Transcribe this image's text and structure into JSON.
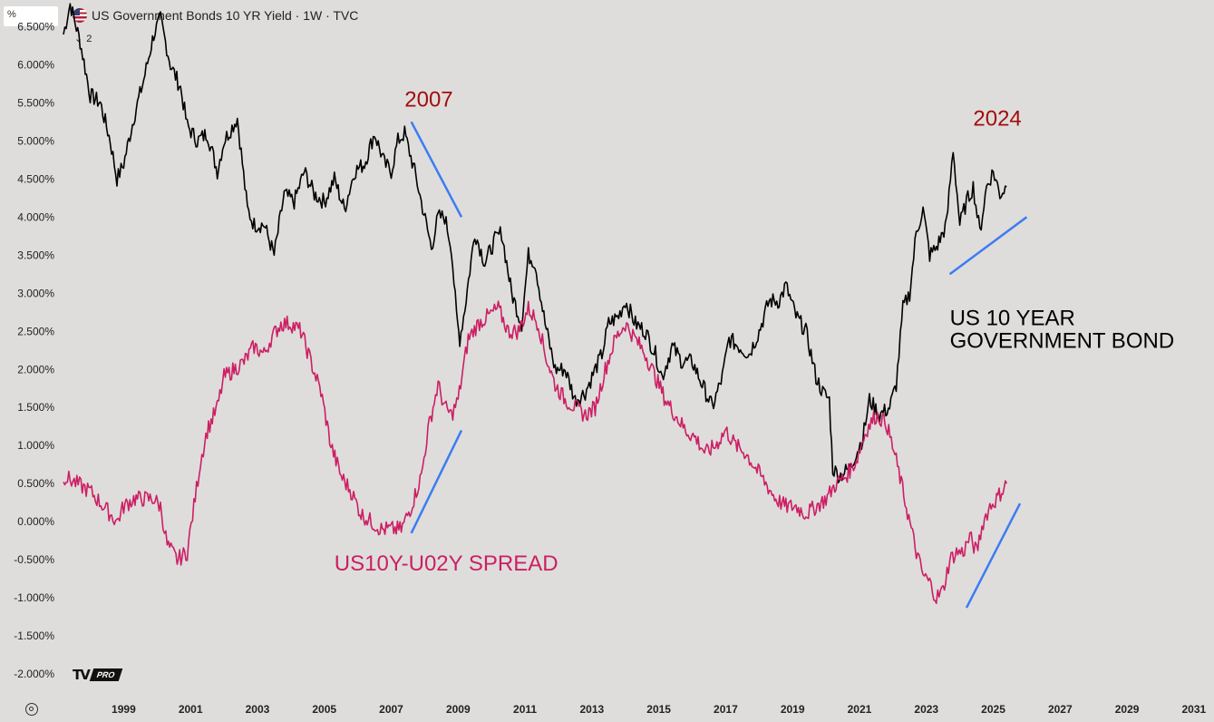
{
  "header": {
    "price_scale_unit": "%",
    "symbol_title": "US Government Bonds 10 YR Yield · 1W · TVC",
    "collapse_count": "2",
    "flag_icon": "us-flag-icon"
  },
  "branding": {
    "logo_text": "TV",
    "pro_badge": "PRO"
  },
  "colors": {
    "background": "#dedddc",
    "us10y": "#000000",
    "spread": "#cc1f64",
    "trendline": "#3d7cf2",
    "year_label": "#a30d0d"
  },
  "chart_data": {
    "type": "line",
    "title": "US Government Bonds 10 YR Yield · 1W · TVC",
    "x_ticks": [
      "1999",
      "2001",
      "2003",
      "2005",
      "2007",
      "2009",
      "2011",
      "2013",
      "2015",
      "2017",
      "2019",
      "2021",
      "2023",
      "2025",
      "2027",
      "2029",
      "2031"
    ],
    "y_ticks": [
      "6.500%",
      "6.000%",
      "5.500%",
      "5.000%",
      "4.500%",
      "4.000%",
      "3.500%",
      "3.000%",
      "2.500%",
      "2.000%",
      "1.500%",
      "1.000%",
      "0.500%",
      "0.000%",
      "-0.500%",
      "-1.000%",
      "-1.500%",
      "-2.000%"
    ],
    "xlim": [
      1997.2,
      2031.6
    ],
    "ylim": [
      -2.32,
      6.85
    ],
    "grid": false,
    "series": [
      {
        "name": "US 10 YEAR GOVERNMENT BOND",
        "color": "#000000",
        "x": [
          1997.2,
          1997.4,
          1997.7,
          1998.0,
          1998.3,
          1998.6,
          1998.8,
          1999.0,
          1999.3,
          1999.6,
          1999.9,
          2000.1,
          2000.4,
          2000.7,
          2000.9,
          2001.2,
          2001.5,
          2001.8,
          2002.0,
          2002.4,
          2002.7,
          2002.9,
          2003.2,
          2003.5,
          2003.8,
          2004.1,
          2004.4,
          2004.7,
          2005.0,
          2005.3,
          2005.6,
          2005.9,
          2006.2,
          2006.5,
          2006.8,
          2007.0,
          2007.2,
          2007.4,
          2007.7,
          2007.9,
          2008.2,
          2008.4,
          2008.6,
          2008.8,
          2008.95,
          2009.05,
          2009.2,
          2009.5,
          2009.8,
          2010.1,
          2010.3,
          2010.6,
          2010.9,
          2011.1,
          2011.3,
          2011.6,
          2011.9,
          2012.2,
          2012.5,
          2012.8,
          2013.0,
          2013.3,
          2013.5,
          2013.8,
          2014.0,
          2014.3,
          2014.6,
          2014.9,
          2015.1,
          2015.4,
          2015.7,
          2016.0,
          2016.3,
          2016.6,
          2016.9,
          2017.1,
          2017.4,
          2017.7,
          2018.0,
          2018.3,
          2018.6,
          2018.8,
          2019.1,
          2019.4,
          2019.7,
          2019.9,
          2020.1,
          2020.2,
          2020.4,
          2020.7,
          2020.9,
          2021.1,
          2021.3,
          2021.6,
          2021.9,
          2022.1,
          2022.3,
          2022.5,
          2022.7,
          2022.9,
          2023.1,
          2023.3,
          2023.6,
          2023.8,
          2024.0,
          2024.2,
          2024.4,
          2024.6,
          2024.8,
          2025.0,
          2025.2,
          2025.4
        ],
        "y": [
          6.4,
          6.8,
          6.3,
          5.6,
          5.5,
          5.0,
          4.5,
          4.7,
          5.3,
          5.8,
          6.4,
          6.6,
          6.0,
          5.7,
          5.2,
          5.0,
          5.1,
          4.6,
          5.0,
          5.3,
          4.1,
          3.9,
          3.9,
          3.5,
          4.3,
          4.2,
          4.6,
          4.3,
          4.2,
          4.5,
          4.1,
          4.6,
          4.7,
          5.1,
          4.7,
          4.6,
          5.0,
          5.1,
          4.6,
          4.2,
          3.6,
          4.0,
          4.0,
          3.6,
          2.7,
          2.4,
          2.8,
          3.8,
          3.4,
          3.7,
          3.8,
          3.0,
          2.6,
          3.5,
          3.4,
          2.6,
          2.0,
          2.0,
          1.6,
          1.7,
          1.9,
          2.2,
          2.6,
          2.7,
          2.9,
          2.6,
          2.5,
          2.2,
          1.9,
          2.3,
          2.1,
          2.1,
          1.8,
          1.5,
          1.9,
          2.4,
          2.3,
          2.2,
          2.5,
          2.9,
          2.9,
          3.1,
          2.7,
          2.5,
          1.9,
          1.7,
          1.6,
          0.7,
          0.6,
          0.7,
          0.9,
          1.1,
          1.6,
          1.4,
          1.5,
          1.8,
          2.8,
          3.0,
          3.8,
          4.1,
          3.5,
          3.6,
          3.9,
          4.9,
          3.9,
          4.2,
          4.4,
          3.8,
          4.4,
          4.6,
          4.3,
          4.4
        ]
      },
      {
        "name": "US10Y-U02Y SPREAD",
        "color": "#cc1f64",
        "x": [
          1997.2,
          1997.6,
          1998.0,
          1998.4,
          1998.8,
          1999.0,
          1999.3,
          1999.6,
          1999.9,
          2000.1,
          2000.3,
          2000.6,
          2000.9,
          2001.1,
          2001.3,
          2001.5,
          2001.8,
          2002.0,
          2002.3,
          2002.6,
          2002.9,
          2003.2,
          2003.4,
          2003.7,
          2004.0,
          2004.3,
          2004.6,
          2004.9,
          2005.2,
          2005.5,
          2005.8,
          2006.1,
          2006.4,
          2006.7,
          2007.0,
          2007.3,
          2007.6,
          2007.9,
          2008.1,
          2008.4,
          2008.6,
          2008.8,
          2009.0,
          2009.3,
          2009.6,
          2009.9,
          2010.2,
          2010.5,
          2010.8,
          2011.1,
          2011.4,
          2011.6,
          2011.9,
          2012.2,
          2012.5,
          2012.8,
          2013.1,
          2013.4,
          2013.7,
          2014.0,
          2014.3,
          2014.6,
          2014.9,
          2015.2,
          2015.5,
          2015.8,
          2016.1,
          2016.4,
          2016.7,
          2017.0,
          2017.3,
          2017.6,
          2017.9,
          2018.2,
          2018.5,
          2018.8,
          2019.1,
          2019.4,
          2019.7,
          2020.0,
          2020.3,
          2020.6,
          2020.9,
          2021.2,
          2021.5,
          2021.8,
          2022.1,
          2022.4,
          2022.7,
          2022.9,
          2023.1,
          2023.3,
          2023.5,
          2023.7,
          2023.9,
          2024.1,
          2024.3,
          2024.5,
          2024.7,
          2024.9,
          2025.1,
          2025.4
        ],
        "y": [
          0.6,
          0.5,
          0.4,
          0.2,
          0.0,
          0.2,
          0.3,
          0.3,
          0.3,
          0.2,
          -0.3,
          -0.5,
          -0.4,
          0.2,
          0.8,
          1.2,
          1.5,
          1.9,
          2.0,
          2.1,
          2.3,
          2.2,
          2.4,
          2.6,
          2.6,
          2.5,
          2.1,
          1.7,
          1.0,
          0.6,
          0.4,
          0.1,
          0.0,
          -0.1,
          -0.1,
          -0.1,
          0.2,
          0.6,
          1.2,
          1.8,
          1.5,
          1.4,
          1.6,
          2.4,
          2.6,
          2.7,
          2.8,
          2.5,
          2.5,
          2.8,
          2.6,
          2.2,
          1.8,
          1.6,
          1.5,
          1.4,
          1.5,
          2.0,
          2.4,
          2.6,
          2.4,
          2.2,
          1.9,
          1.6,
          1.4,
          1.2,
          1.1,
          0.9,
          1.0,
          1.2,
          1.0,
          0.9,
          0.7,
          0.5,
          0.3,
          0.2,
          0.2,
          0.1,
          0.2,
          0.3,
          0.5,
          0.6,
          0.8,
          1.2,
          1.4,
          1.3,
          0.8,
          0.2,
          -0.4,
          -0.7,
          -0.8,
          -1.0,
          -0.9,
          -0.5,
          -0.4,
          -0.4,
          -0.2,
          -0.4,
          0.0,
          0.2,
          0.3,
          0.5
        ]
      }
    ],
    "annotations": [
      {
        "text": "2007",
        "x": 2007.4,
        "y": 5.45,
        "color": "#a30d0d"
      },
      {
        "text": "2024",
        "x": 2024.4,
        "y": 5.2,
        "color": "#a30d0d"
      },
      {
        "text": "US 10 YEAR",
        "x": 2023.7,
        "y": 2.58,
        "color": "#000000"
      },
      {
        "text": "GOVERNMENT BOND",
        "x": 2023.7,
        "y": 2.28,
        "color": "#000000"
      },
      {
        "text": "US10Y-U02Y SPREAD",
        "x": 2005.3,
        "y": -0.64,
        "color": "#cc1f64"
      }
    ],
    "trendlines": [
      {
        "x1": 2007.6,
        "y1": 5.25,
        "x2": 2009.1,
        "y2": 4.0
      },
      {
        "x1": 2007.6,
        "y1": -0.15,
        "x2": 2009.1,
        "y2": 1.2
      },
      {
        "x1": 2023.7,
        "y1": 3.25,
        "x2": 2026.0,
        "y2": 4.0
      },
      {
        "x1": 2024.2,
        "y1": -1.13,
        "x2": 2025.8,
        "y2": 0.24
      }
    ]
  }
}
